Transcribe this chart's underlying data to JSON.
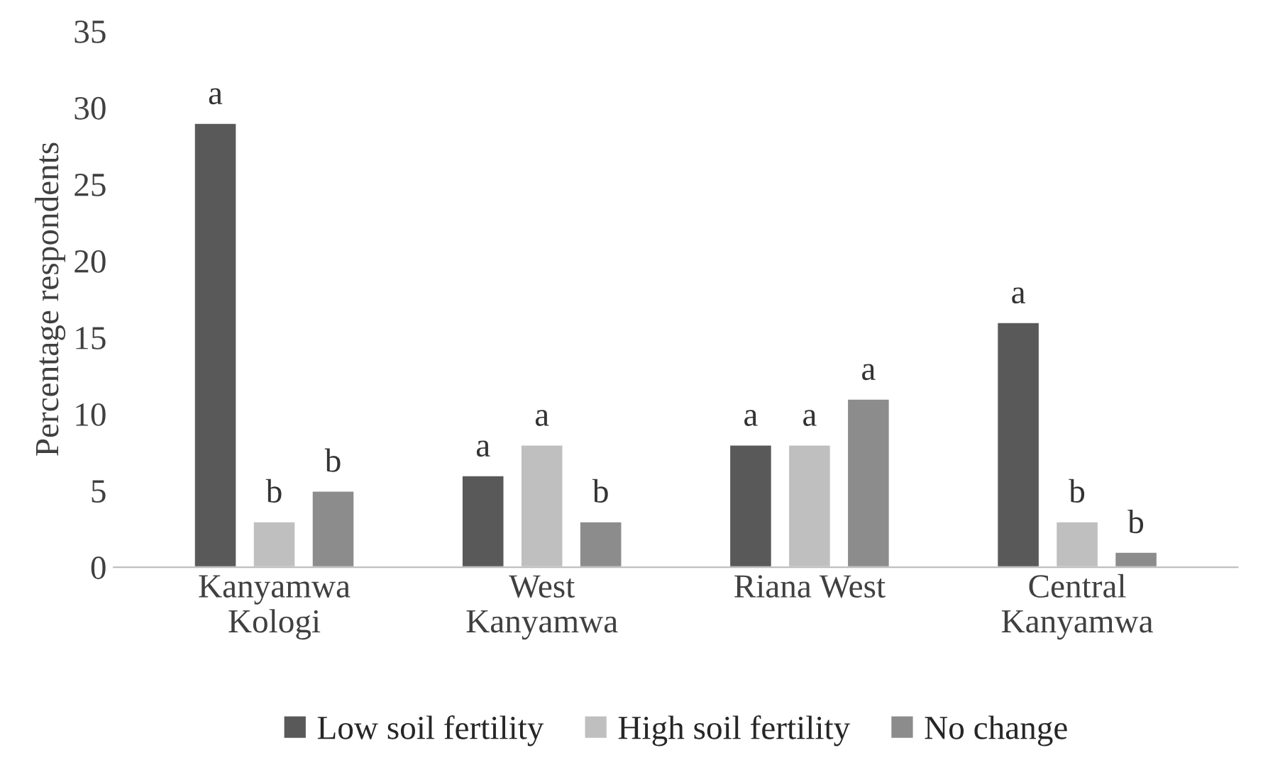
{
  "chart_data": {
    "type": "bar",
    "ylabel": "Percentage respondents",
    "categories": [
      "Kanyamwa\nKologi",
      "West\nKanyamwa",
      "Riana West",
      "Central\nKanyamwa"
    ],
    "series": [
      {
        "name": "Low soil fertility",
        "color": "#595959",
        "values": [
          29,
          6,
          8,
          16
        ],
        "value_labels": [
          "a",
          "a",
          "a",
          "a"
        ]
      },
      {
        "name": "High soil fertility",
        "color": "#bfbfbf",
        "values": [
          3,
          8,
          8,
          3
        ],
        "value_labels": [
          "b",
          "a",
          "a",
          "b"
        ]
      },
      {
        "name": "No change",
        "color": "#8c8c8c",
        "values": [
          5,
          3,
          11,
          1
        ],
        "value_labels": [
          "b",
          "b",
          "a",
          "b"
        ]
      }
    ],
    "ylim": [
      0,
      35
    ],
    "yticks": [
      0,
      5,
      10,
      15,
      20,
      25,
      30,
      35
    ],
    "grid": false,
    "legend": "bottom"
  }
}
